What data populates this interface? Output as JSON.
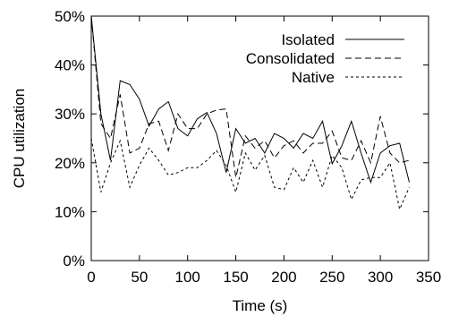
{
  "chart_data": {
    "type": "line",
    "xlabel": "Time (s)",
    "ylabel": "CPU utilization",
    "xlim": [
      0,
      350
    ],
    "ylim": [
      0,
      50
    ],
    "x_ticks": [
      {
        "value": 0,
        "label": "0"
      },
      {
        "value": 50,
        "label": "50"
      },
      {
        "value": 100,
        "label": "100"
      },
      {
        "value": 150,
        "label": "150"
      },
      {
        "value": 200,
        "label": "200"
      },
      {
        "value": 250,
        "label": "250"
      },
      {
        "value": 300,
        "label": "300"
      },
      {
        "value": 350,
        "label": "350"
      }
    ],
    "y_ticks": [
      {
        "value": 0,
        "label": "0%"
      },
      {
        "value": 10,
        "label": "10%"
      },
      {
        "value": 20,
        "label": "20%"
      },
      {
        "value": 30,
        "label": "30%"
      },
      {
        "value": 40,
        "label": "40%"
      },
      {
        "value": 50,
        "label": "50%"
      }
    ],
    "grid": false,
    "legend_position": "top-right",
    "series": [
      {
        "name": "Isolated",
        "dash": "solid",
        "x": [
          0,
          10,
          20,
          30,
          40,
          50,
          60,
          70,
          80,
          90,
          100,
          110,
          120,
          130,
          140,
          150,
          160,
          170,
          180,
          190,
          200,
          210,
          220,
          230,
          240,
          250,
          260,
          270,
          280,
          290,
          300,
          310,
          320,
          330
        ],
        "y": [
          50,
          30,
          20.5,
          36.8,
          36,
          33,
          27.5,
          31,
          32.5,
          27,
          25.5,
          29,
          30.3,
          26,
          18,
          27,
          24,
          25,
          22,
          26,
          25,
          23,
          26,
          25,
          28.5,
          19.8,
          23.5,
          28.5,
          22,
          16,
          22,
          23.5,
          24,
          16
        ]
      },
      {
        "name": "Consolidated",
        "dash": "dashed",
        "x": [
          0,
          10,
          20,
          30,
          40,
          50,
          60,
          70,
          80,
          90,
          100,
          110,
          120,
          130,
          140,
          150,
          160,
          170,
          180,
          190,
          200,
          210,
          220,
          230,
          240,
          250,
          260,
          270,
          280,
          290,
          300,
          310,
          320,
          330
        ],
        "y": [
          50,
          28,
          25,
          34,
          22,
          23,
          28,
          28.5,
          22.5,
          30,
          27,
          27,
          30,
          30.8,
          31,
          17,
          25.5,
          23,
          24.5,
          21,
          23.5,
          24.5,
          22,
          24,
          24,
          26.5,
          21,
          20.5,
          24.5,
          20,
          29.5,
          22,
          20,
          20.5
        ]
      },
      {
        "name": "Native",
        "dash": "dotted",
        "x": [
          0,
          10,
          20,
          30,
          40,
          50,
          60,
          70,
          80,
          90,
          100,
          110,
          120,
          130,
          140,
          150,
          160,
          170,
          180,
          190,
          200,
          210,
          220,
          230,
          240,
          250,
          260,
          270,
          280,
          290,
          300,
          310,
          320,
          330
        ],
        "y": [
          25,
          14,
          20,
          24.5,
          15,
          19.5,
          23,
          20.5,
          17.5,
          18,
          19,
          19,
          20.5,
          22.5,
          19.5,
          14,
          22,
          18.5,
          21.5,
          15,
          14.5,
          19,
          16,
          20.5,
          15,
          21.5,
          19,
          12.5,
          16.5,
          17,
          17,
          20,
          10.5,
          15
        ]
      }
    ]
  }
}
